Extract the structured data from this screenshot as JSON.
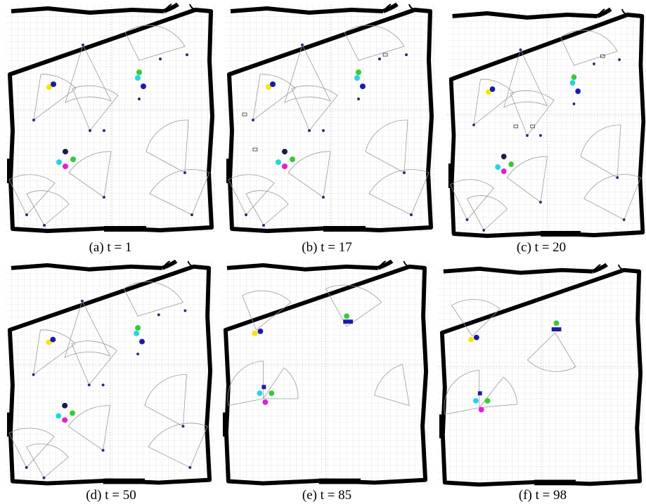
{
  "panels": [
    {
      "caption": "(a) t = 1"
    },
    {
      "caption": "(b) t = 17"
    },
    {
      "caption": "(c) t = 20"
    },
    {
      "caption": "(d)  t = 50"
    },
    {
      "caption": "(e) t = 85"
    },
    {
      "caption": "(f) t = 98"
    }
  ]
}
